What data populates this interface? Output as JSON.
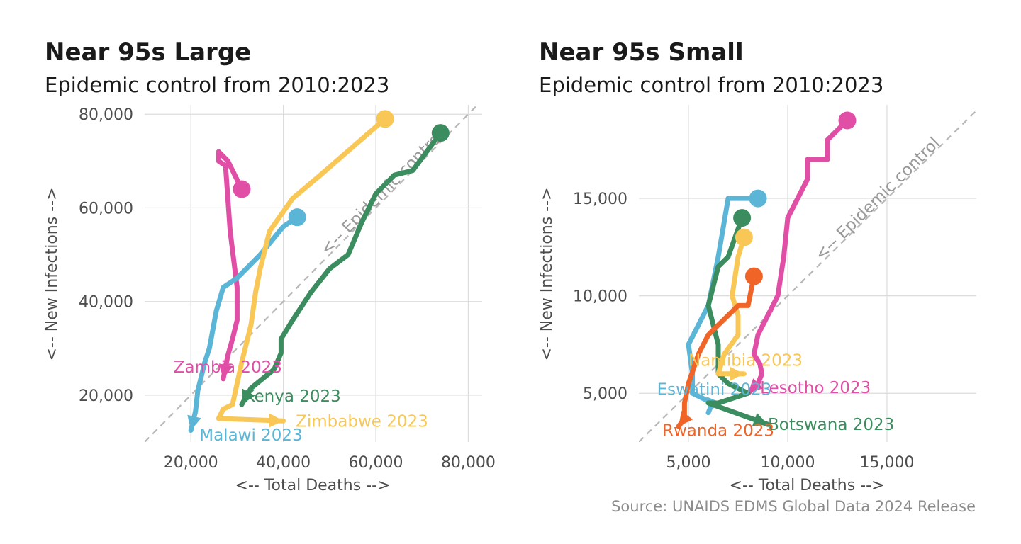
{
  "caption": "Source: UNAIDS EDMS Global Data 2024 Release",
  "control_label": "<-- Epidemic control",
  "chart_data": [
    {
      "type": "line",
      "title": "Near 95s Large",
      "subtitle": "Epidemic control from 2010:2023",
      "xlabel": "<-- Total Deaths -->",
      "ylabel": "<-- New Infections -->",
      "xlim": [
        10000,
        83000
      ],
      "ylim": [
        10000,
        82000
      ],
      "x_ticks": [
        20000,
        40000,
        60000,
        80000
      ],
      "y_ticks": [
        20000,
        40000,
        60000,
        80000
      ],
      "x_tick_labels": [
        "20,000",
        "40,000",
        "60,000",
        "80,000"
      ],
      "y_tick_labels": [
        "20,000",
        "40,000",
        "60,000",
        "80,000"
      ],
      "grid": true,
      "reference_line": "y = x",
      "series": [
        {
          "name": "Zambia",
          "label": "Zambia 2023",
          "color": "#E04EA6",
          "label_at": [
            28000,
            26000
          ],
          "label_anchor": "middle",
          "points": [
            [
              31000,
              64000
            ],
            [
              28000,
              70000
            ],
            [
              26000,
              72000
            ],
            [
              26000,
              70000
            ],
            [
              27500,
              69000
            ],
            [
              28500,
              55000
            ],
            [
              30000,
              43000
            ],
            [
              30000,
              36000
            ],
            [
              29000,
              32000
            ],
            [
              28000,
              28500
            ],
            [
              27500,
              26000
            ],
            [
              27000,
              23500
            ]
          ]
        },
        {
          "name": "Kenya",
          "label": "Kenya 2023",
          "color": "#3B8C5F",
          "label_at": [
            42000,
            19800
          ],
          "label_anchor": "middle",
          "points": [
            [
              74000,
              76000
            ],
            [
              68000,
              68000
            ],
            [
              64000,
              67000
            ],
            [
              60000,
              63000
            ],
            [
              57000,
              57000
            ],
            [
              54000,
              50000
            ],
            [
              50000,
              47000
            ],
            [
              46000,
              42000
            ],
            [
              42000,
              36000
            ],
            [
              39500,
              32000
            ],
            [
              39500,
              29000
            ],
            [
              38000,
              25500
            ],
            [
              33000,
              21500
            ],
            [
              31000,
              18000
            ]
          ]
        },
        {
          "name": "Malawi",
          "label": "Malawi 2023",
          "color": "#5BB5D6",
          "label_at": [
            33000,
            11500
          ],
          "label_anchor": "middle",
          "points": [
            [
              43000,
              58000
            ],
            [
              40000,
              56000
            ],
            [
              35000,
              50000
            ],
            [
              30000,
              45000
            ],
            [
              27000,
              43000
            ],
            [
              25500,
              38000
            ],
            [
              24000,
              30000
            ],
            [
              23000,
              27000
            ],
            [
              21500,
              21000
            ],
            [
              21000,
              16500
            ],
            [
              20000,
              12500
            ]
          ]
        },
        {
          "name": "Zimbabwe",
          "label": "Zimbabwe 2023",
          "color": "#F8C755",
          "label_at": [
            57000,
            14500
          ],
          "label_anchor": "middle",
          "points": [
            [
              62000,
              79000
            ],
            [
              55000,
              73000
            ],
            [
              48000,
              67000
            ],
            [
              42000,
              62000
            ],
            [
              37000,
              55000
            ],
            [
              35000,
              47000
            ],
            [
              34000,
              42000
            ],
            [
              33000,
              35000
            ],
            [
              31000,
              27000
            ],
            [
              29000,
              18000
            ],
            [
              27000,
              17000
            ],
            [
              26000,
              15000
            ],
            [
              40000,
              14500
            ]
          ]
        }
      ]
    },
    {
      "type": "line",
      "title": "Near 95s Small",
      "subtitle": "Epidemic control from 2010:2023",
      "xlabel": "<-- Total Deaths -->",
      "ylabel": "<-- New Infections -->",
      "xlim": [
        2500,
        19500
      ],
      "ylim": [
        2500,
        19800
      ],
      "x_ticks": [
        5000,
        10000,
        15000
      ],
      "y_ticks": [
        5000,
        10000,
        15000
      ],
      "x_tick_labels": [
        "5,000",
        "10,000",
        "15,000"
      ],
      "y_tick_labels": [
        "5,000",
        "10,000",
        "15,000"
      ],
      "grid": true,
      "reference_line": "y = x",
      "series": [
        {
          "name": "Lesotho",
          "label": "Lesotho 2023",
          "color": "#E04EA6",
          "label_at": [
            11400,
            5300
          ],
          "label_anchor": "middle",
          "points": [
            [
              13000,
              19000
            ],
            [
              12000,
              18000
            ],
            [
              12000,
              17000
            ],
            [
              11000,
              17000
            ],
            [
              11000,
              16000
            ],
            [
              10500,
              15000
            ],
            [
              10000,
              14000
            ],
            [
              9800,
              12000
            ],
            [
              9500,
              10000
            ],
            [
              9000,
              9000
            ],
            [
              8500,
              8000
            ],
            [
              8300,
              7000
            ],
            [
              8600,
              6500
            ],
            [
              8700,
              6000
            ],
            [
              8500,
              5500
            ],
            [
              8000,
              5000
            ]
          ]
        },
        {
          "name": "Eswatini",
          "label": "Eswatini 2023",
          "color": "#5BB5D6",
          "label_at": [
            6300,
            5200
          ],
          "label_anchor": "middle",
          "points": [
            [
              8500,
              15000
            ],
            [
              7000,
              15000
            ],
            [
              6500,
              12000
            ],
            [
              6000,
              9500
            ],
            [
              5000,
              7500
            ],
            [
              5200,
              6000
            ],
            [
              5200,
              5000
            ],
            [
              6200,
              4500
            ],
            [
              6000,
              4000
            ]
          ]
        },
        {
          "name": "Botswana",
          "label": "Botswana 2023",
          "color": "#3B8C5F",
          "label_at": [
            9000,
            3400
          ],
          "label_anchor": "start",
          "points": [
            [
              7700,
              14000
            ],
            [
              7000,
              12000
            ],
            [
              6500,
              11500
            ],
            [
              6000,
              9500
            ],
            [
              6500,
              7500
            ],
            [
              6500,
              6000
            ],
            [
              7000,
              5500
            ],
            [
              8000,
              5000
            ],
            [
              6500,
              4500
            ],
            [
              6000,
              4500
            ],
            [
              9000,
              3400
            ]
          ]
        },
        {
          "name": "Namibia",
          "label": "Namibia 2023",
          "color": "#F8C755",
          "label_at": [
            5000,
            6700
          ],
          "label_anchor": "start",
          "points": [
            [
              7800,
              13000
            ],
            [
              7500,
              12000
            ],
            [
              7200,
              10000
            ],
            [
              7500,
              9000
            ],
            [
              7500,
              8000
            ],
            [
              6800,
              7000
            ],
            [
              6500,
              6000
            ],
            [
              7800,
              6000
            ]
          ]
        },
        {
          "name": "Rwanda",
          "label": "Rwanda 2023",
          "color": "#F06428",
          "label_at": [
            6500,
            3100
          ],
          "label_anchor": "middle",
          "points": [
            [
              8300,
              11000
            ],
            [
              8000,
              9500
            ],
            [
              7500,
              9500
            ],
            [
              7000,
              9000
            ],
            [
              6500,
              8500
            ],
            [
              6000,
              8000
            ],
            [
              5500,
              7000
            ],
            [
              5000,
              5500
            ],
            [
              4800,
              4500
            ],
            [
              4800,
              3700
            ],
            [
              4500,
              3300
            ]
          ]
        }
      ]
    }
  ]
}
